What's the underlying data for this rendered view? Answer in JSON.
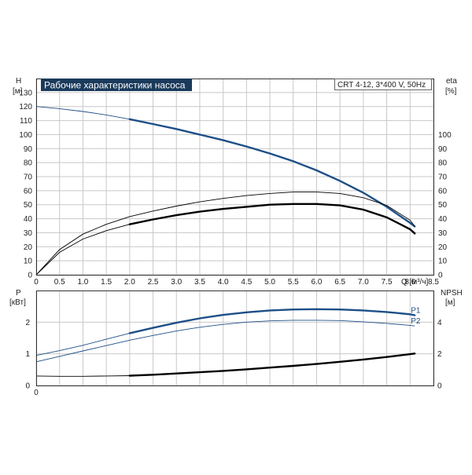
{
  "chart_data": [
    {
      "type": "line",
      "title": "Рабочие характеристики насоса",
      "subtitle": "CRT 4-12, 3*400 V, 50Hz",
      "xlabel": "Q [м³/ч]",
      "ylabel_left": "H",
      "ylabel_left_unit": "[м]",
      "ylabel_right": "eta",
      "ylabel_right_unit": "[%]",
      "xlim": [
        0,
        8.5
      ],
      "ylim_left": [
        0,
        140
      ],
      "ylim_right": [
        0,
        140
      ],
      "xticks": [
        "0",
        "0.5",
        "1.0",
        "1.5",
        "2.0",
        "2.5",
        "3.0",
        "3.5",
        "4.0",
        "4.5",
        "5.0",
        "5.5",
        "6.0",
        "6.5",
        "7.0",
        "7.5",
        "8.0",
        "8.5"
      ],
      "yticks_left": [
        "0",
        "10",
        "20",
        "30",
        "40",
        "50",
        "60",
        "70",
        "80",
        "90",
        "100",
        "110",
        "120",
        "130"
      ],
      "yticks_right": [
        "0",
        "10",
        "20",
        "30",
        "40",
        "50",
        "60",
        "70",
        "80",
        "90",
        "100"
      ],
      "grid": true,
      "series": [
        {
          "axis": "left",
          "color": "#1d4f87",
          "style": "head",
          "recommended_from": 2.0,
          "x": [
            0,
            0.5,
            1.0,
            1.5,
            2.0,
            2.5,
            3.0,
            3.5,
            4.0,
            4.5,
            5.0,
            5.5,
            6.0,
            6.5,
            7.0,
            7.5,
            8.0,
            8.1
          ],
          "y": [
            120,
            118.5,
            116.5,
            114,
            111,
            107.5,
            104,
            100,
            96,
            91.5,
            86.5,
            81,
            74.5,
            67,
            58.5,
            48.5,
            37,
            34.5
          ]
        },
        {
          "axis": "right",
          "color": "#000000",
          "style": "thin",
          "x": [
            0,
            0.5,
            1.0,
            1.5,
            2.0,
            2.5,
            3.0,
            3.5,
            4.0,
            4.5,
            5.0,
            5.5,
            6.0,
            6.5,
            7.0,
            7.5,
            8.0,
            8.1
          ],
          "y": [
            0,
            18,
            29,
            36,
            41.5,
            45.5,
            49,
            52,
            54.5,
            56.5,
            58,
            59,
            59,
            58,
            55,
            49.5,
            39,
            34.5
          ]
        },
        {
          "axis": "right",
          "color": "#000000",
          "style": "thick",
          "recommended_from": 2.0,
          "x": [
            0,
            0.5,
            1.0,
            1.5,
            2.0,
            2.5,
            3.0,
            3.5,
            4.0,
            4.5,
            5.0,
            5.5,
            6.0,
            6.5,
            7.0,
            7.5,
            8.0,
            8.1
          ],
          "y": [
            0,
            16,
            25.5,
            31.5,
            36,
            39.5,
            42.5,
            45,
            47,
            48.5,
            50,
            50.5,
            50.5,
            49.5,
            46.5,
            41,
            32.5,
            29.5
          ]
        }
      ]
    },
    {
      "type": "line",
      "xlabel": "",
      "ylabel_left": "P",
      "ylabel_left_unit": "[кВт]",
      "ylabel_right": "NPSH",
      "ylabel_right_unit": "[м]",
      "xlim": [
        0,
        8.5
      ],
      "ylim_left": [
        0,
        3
      ],
      "ylim_right": [
        0,
        6
      ],
      "yticks_left": [
        "0",
        "1",
        "2"
      ],
      "yticks_right": [
        "0",
        "2",
        "4"
      ],
      "grid": true,
      "series": [
        {
          "name": "P1",
          "axis": "left",
          "color": "#1d4f87",
          "style": "thin-thick",
          "recommended_from": 2.0,
          "x": [
            0,
            0.5,
            1.0,
            1.5,
            2.0,
            2.5,
            3.0,
            3.5,
            4.0,
            4.5,
            5.0,
            5.5,
            6.0,
            6.5,
            7.0,
            7.5,
            8.0,
            8.1
          ],
          "y": [
            0.95,
            1.1,
            1.27,
            1.46,
            1.65,
            1.82,
            1.98,
            2.12,
            2.23,
            2.31,
            2.37,
            2.4,
            2.41,
            2.4,
            2.37,
            2.32,
            2.25,
            2.22
          ]
        },
        {
          "name": "P2",
          "axis": "left",
          "color": "#1d4f87",
          "style": "thin",
          "x": [
            0,
            0.5,
            1.0,
            1.5,
            2.0,
            2.5,
            3.0,
            3.5,
            4.0,
            4.5,
            5.0,
            5.5,
            6.0,
            6.5,
            7.0,
            7.5,
            8.0,
            8.1
          ],
          "y": [
            0.75,
            0.92,
            1.09,
            1.26,
            1.43,
            1.58,
            1.72,
            1.84,
            1.93,
            2.0,
            2.04,
            2.06,
            2.06,
            2.05,
            2.01,
            1.96,
            1.9,
            1.88
          ]
        },
        {
          "name": "",
          "axis": "right",
          "color": "#000000",
          "style": "thin-thick",
          "recommended_from": 2.0,
          "x": [
            0,
            0.5,
            1.0,
            1.5,
            2.0,
            2.5,
            3.0,
            3.5,
            4.0,
            4.5,
            5.0,
            5.5,
            6.0,
            6.5,
            7.0,
            7.5,
            8.0,
            8.1
          ],
          "y": [
            0.6,
            0.58,
            0.58,
            0.6,
            0.62,
            0.68,
            0.76,
            0.84,
            0.92,
            1.02,
            1.13,
            1.24,
            1.36,
            1.5,
            1.64,
            1.8,
            1.98,
            2.02
          ]
        }
      ]
    }
  ]
}
